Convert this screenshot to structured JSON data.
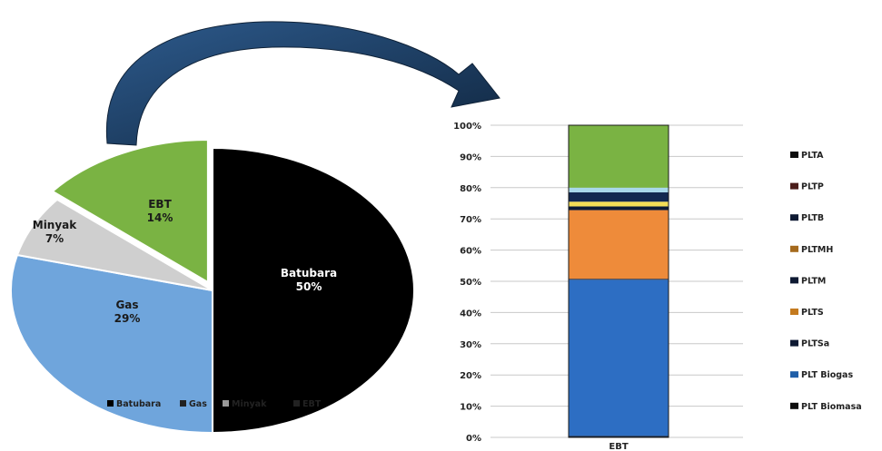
{
  "chart_data": [
    {
      "type": "pie",
      "categories": [
        "Batubara",
        "Gas",
        "Minyak",
        "EBT"
      ],
      "values": [
        50,
        29,
        7,
        14
      ],
      "value_labels": [
        "50%",
        "29%",
        "7%",
        "14%"
      ],
      "exploded": [
        "EBT"
      ],
      "colors": {
        "Batubara": "#000000",
        "Gas": "#6fa5dc",
        "Minyak": "#cfcfcf",
        "EBT": "#7ab343"
      },
      "legend": {
        "placement": "bottom",
        "entries": [
          "Batubara",
          "Gas",
          "Minyak",
          "EBT"
        ]
      }
    },
    {
      "type": "bar",
      "stacked": true,
      "categories": [
        "EBT"
      ],
      "ylim": [
        0,
        100
      ],
      "yticks": [
        "0%",
        "10%",
        "20%",
        "30%",
        "40%",
        "50%",
        "60%",
        "70%",
        "80%",
        "90%",
        "100%"
      ],
      "grid": true,
      "series": [
        {
          "name": "PLT Biomasa",
          "values": [
            0.5
          ],
          "color": "#0b1a36"
        },
        {
          "name": "PLT Biogas",
          "values": [
            50
          ],
          "color": "#2d6ec3"
        },
        {
          "name": "PLTSa",
          "values": [
            0.3
          ],
          "color": "#0d1b33"
        },
        {
          "name": "PLTS",
          "values": [
            22
          ],
          "color": "#ee8b3a"
        },
        {
          "name": "PLTM",
          "values": [
            1.2
          ],
          "color": "#0b1a36"
        },
        {
          "name": "PLTMH",
          "values": [
            1.5
          ],
          "color": "#f3dd56"
        },
        {
          "name": "PLTB",
          "values": [
            3
          ],
          "color": "#122850"
        },
        {
          "name": "PLTP",
          "values": [
            1.5
          ],
          "color": "#a8d8ea"
        },
        {
          "name": "PLTA",
          "values": [
            20
          ],
          "color": "#7ab343"
        }
      ],
      "legend": {
        "placement": "right",
        "entries": [
          {
            "name": "PLTA",
            "swatch": "#0d0d0d"
          },
          {
            "name": "PLTP",
            "swatch": "#4a1d1a"
          },
          {
            "name": "PLTB",
            "swatch": "#0e1a33"
          },
          {
            "name": "PLTMH",
            "swatch": "#a56a1e"
          },
          {
            "name": "PLTM",
            "swatch": "#0e1a33"
          },
          {
            "name": "PLTS",
            "swatch": "#c47a1f"
          },
          {
            "name": "PLTSa",
            "swatch": "#0e1a33"
          },
          {
            "name": "PLT Biogas",
            "swatch": "#1f5ea8"
          },
          {
            "name": "PLT Biomasa",
            "swatch": "#0d0d0d"
          }
        ]
      }
    }
  ],
  "arrow": {
    "icon": "curved-arrow-icon",
    "color": "#1c3d66"
  }
}
